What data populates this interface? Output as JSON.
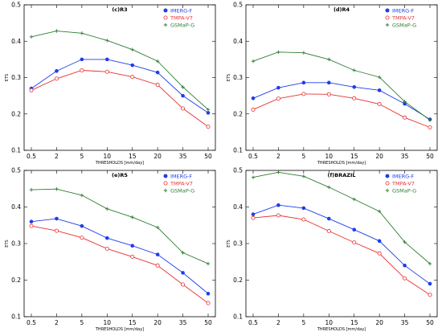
{
  "chart_data": [
    {
      "type": "line",
      "title": "(c)R3",
      "xlabel": "THRESHOLDS [mm/day]",
      "ylabel": "ETS",
      "categories": [
        "0.5",
        "2",
        "5",
        "10",
        "15",
        "20",
        "35",
        "50"
      ],
      "ylim": [
        0.1,
        0.5
      ],
      "yticks": [
        "0.1",
        "0.2",
        "0.3",
        "0.4",
        "0.5"
      ],
      "legend_position": "top-right",
      "grid": false,
      "series": [
        {
          "name": "IMERG-F",
          "color": "#1f3de8",
          "marker": "filled-circle",
          "values": [
            0.27,
            0.318,
            0.35,
            0.35,
            0.334,
            0.314,
            0.25,
            0.203
          ]
        },
        {
          "name": "TMPA-V7",
          "color": "#e83030",
          "marker": "open-circle",
          "values": [
            0.265,
            0.297,
            0.32,
            0.316,
            0.302,
            0.28,
            0.215,
            0.165
          ]
        },
        {
          "name": "GSMaP-G",
          "color": "#2e7d32",
          "marker": "plus",
          "values": [
            0.412,
            0.428,
            0.422,
            0.402,
            0.377,
            0.345,
            0.274,
            0.212
          ]
        }
      ]
    },
    {
      "type": "line",
      "title": "(d)R4",
      "xlabel": "THRESHOLDS [mm/day]",
      "ylabel": "ETS",
      "categories": [
        "0.5",
        "2",
        "5",
        "10",
        "15",
        "20",
        "35",
        "50"
      ],
      "ylim": [
        0.1,
        0.5
      ],
      "yticks": [
        "0.1",
        "0.2",
        "0.3",
        "0.4",
        "0.5"
      ],
      "legend_position": "top-right",
      "grid": false,
      "series": [
        {
          "name": "IMERG-F",
          "color": "#1f3de8",
          "marker": "filled-circle",
          "values": [
            0.243,
            0.272,
            0.286,
            0.286,
            0.274,
            0.265,
            0.228,
            0.185
          ]
        },
        {
          "name": "TMPA-V7",
          "color": "#e83030",
          "marker": "open-circle",
          "values": [
            0.212,
            0.242,
            0.255,
            0.254,
            0.243,
            0.227,
            0.19,
            0.163
          ]
        },
        {
          "name": "GSMaP-G",
          "color": "#2e7d32",
          "marker": "plus",
          "values": [
            0.345,
            0.37,
            0.368,
            0.35,
            0.32,
            0.301,
            0.234,
            0.183
          ]
        }
      ]
    },
    {
      "type": "line",
      "title": "(e)R5",
      "xlabel": "THRESHOLDS [mm/day]",
      "ylabel": "ETS",
      "categories": [
        "0.5",
        "2",
        "5",
        "10",
        "15",
        "20",
        "35",
        "50"
      ],
      "ylim": [
        0.1,
        0.5
      ],
      "yticks": [
        "0.1",
        "0.2",
        "0.3",
        "0.4",
        "0.5"
      ],
      "legend_position": "top-right",
      "grid": false,
      "series": [
        {
          "name": "IMERG-F",
          "color": "#1f3de8",
          "marker": "filled-circle",
          "values": [
            0.36,
            0.368,
            0.348,
            0.315,
            0.294,
            0.27,
            0.22,
            0.163
          ]
        },
        {
          "name": "TMPA-V7",
          "color": "#e83030",
          "marker": "open-circle",
          "values": [
            0.348,
            0.335,
            0.316,
            0.286,
            0.264,
            0.24,
            0.188,
            0.137
          ]
        },
        {
          "name": "GSMaP-G",
          "color": "#2e7d32",
          "marker": "plus",
          "values": [
            0.447,
            0.449,
            0.432,
            0.395,
            0.372,
            0.344,
            0.275,
            0.245
          ]
        }
      ]
    },
    {
      "type": "line",
      "title": "(f)BRAZIL",
      "xlabel": "THRESHOLDS [mm/day]",
      "ylabel": "ETS",
      "categories": [
        "0.5",
        "2",
        "5",
        "10",
        "15",
        "20",
        "35",
        "50"
      ],
      "ylim": [
        0.1,
        0.5
      ],
      "yticks": [
        "0.1",
        "0.2",
        "0.3",
        "0.4",
        "0.5"
      ],
      "legend_position": "top-right",
      "grid": false,
      "series": [
        {
          "name": "IMERG-F",
          "color": "#1f3de8",
          "marker": "filled-circle",
          "values": [
            0.38,
            0.405,
            0.397,
            0.368,
            0.338,
            0.307,
            0.24,
            0.19
          ]
        },
        {
          "name": "TMPA-V7",
          "color": "#e83030",
          "marker": "open-circle",
          "values": [
            0.37,
            0.377,
            0.366,
            0.334,
            0.303,
            0.273,
            0.205,
            0.16
          ]
        },
        {
          "name": "GSMaP-G",
          "color": "#2e7d32",
          "marker": "plus",
          "values": [
            0.481,
            0.495,
            0.484,
            0.454,
            0.421,
            0.388,
            0.304,
            0.245
          ]
        }
      ]
    }
  ]
}
